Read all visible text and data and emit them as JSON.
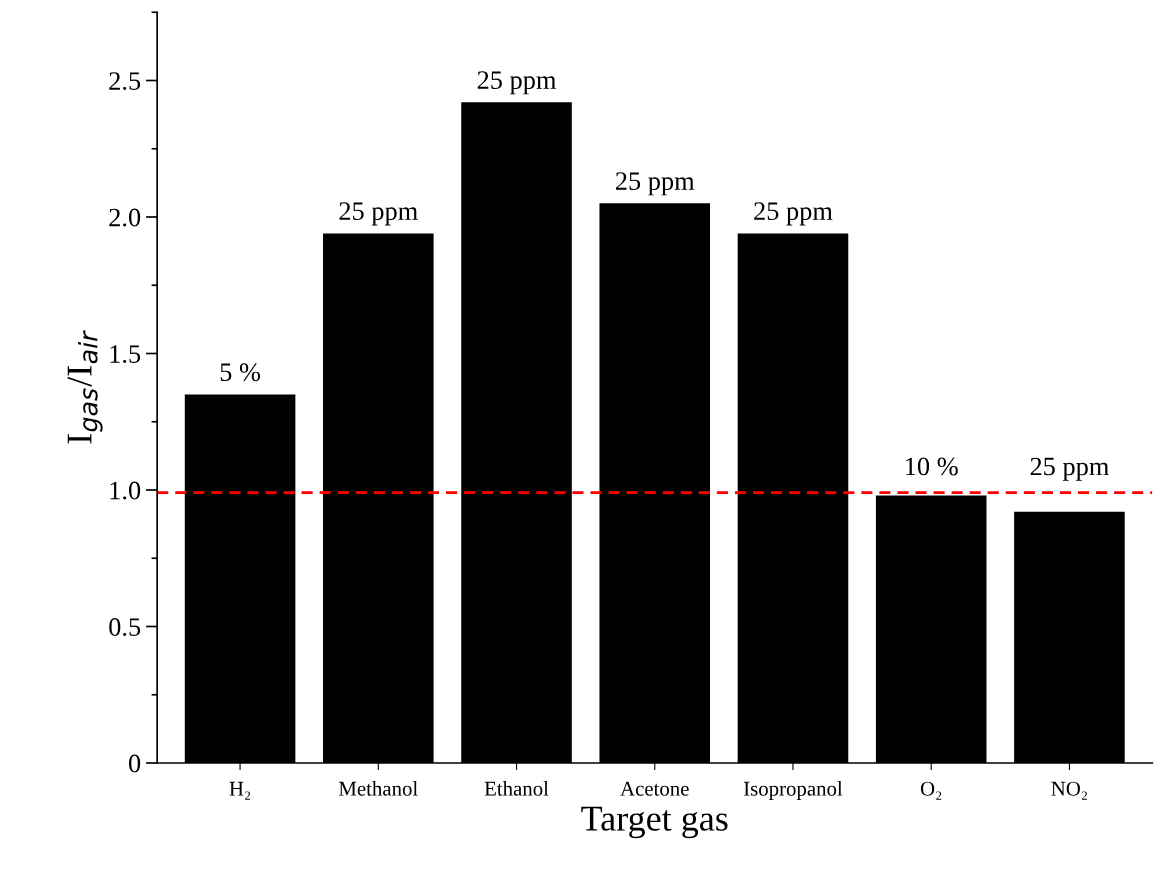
{
  "chart_data": {
    "type": "bar",
    "categories": [
      "H₂",
      "Methanol",
      "Ethanol",
      "Acetone",
      "Isopropanol",
      "O₂",
      "NO₂"
    ],
    "values": [
      1.35,
      1.94,
      2.42,
      2.05,
      1.94,
      0.98,
      0.92
    ],
    "annotations": [
      {
        "text": "5 %",
        "x": "H₂",
        "y": 1.35
      },
      {
        "text": "25 ppm",
        "x": "Methanol",
        "y": 1.94
      },
      {
        "text": "25 ppm",
        "x": "Ethanol",
        "y": 2.42
      },
      {
        "text": "25 ppm",
        "x": "Acetone",
        "y": 2.05
      },
      {
        "text": "25 ppm",
        "x": "Isopropanol",
        "y": 1.94
      },
      {
        "text": "10 %",
        "x": "O₂",
        "y": 0.98
      },
      {
        "text": "25 ppm",
        "x": "NO₂",
        "y": 0.92
      }
    ],
    "color": "#000000",
    "xlabel": "Target gas",
    "ylabel": "I$_{gas}$/I$_{air}$",
    "ylim": [
      0,
      2.75
    ],
    "yticks": [
      {
        "value": 0,
        "label": "0"
      },
      0.5,
      {
        "value": 1,
        "label": "1.0"
      },
      1.5,
      {
        "value": 2,
        "label": "2.0"
      },
      2.5
    ],
    "ref_lines": [
      {
        "axis": "y",
        "value": 0.99,
        "color": "#ff0000",
        "line_style": "dashed"
      }
    ],
    "grid": false,
    "legend": false
  }
}
